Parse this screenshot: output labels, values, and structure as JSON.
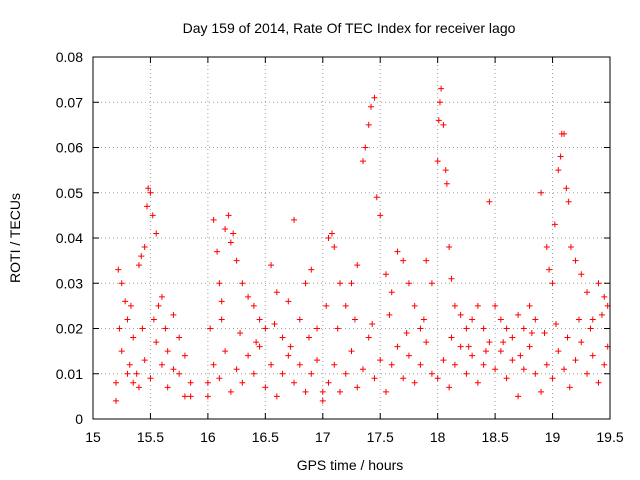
{
  "chart_data": {
    "type": "scatter",
    "title": "Day 159 of 2014, Rate Of TEC Index for receiver lago",
    "xlabel": "GPS time / hours",
    "ylabel": "ROTI / TECUs",
    "xlim": [
      15,
      19.5
    ],
    "ylim": [
      0,
      0.08
    ],
    "xticks": [
      15,
      15.5,
      16,
      16.5,
      17,
      17.5,
      18,
      18.5,
      19,
      19.5
    ],
    "xtick_labels": [
      "15",
      "15.5",
      "16",
      "16.5",
      "17",
      "17.5",
      "18",
      "18.5",
      "19",
      "19.5"
    ],
    "yticks": [
      0,
      0.01,
      0.02,
      0.03,
      0.04,
      0.05,
      0.06,
      0.07,
      0.08
    ],
    "ytick_labels": [
      "0",
      "0.01",
      "0.02",
      "0.03",
      "0.04",
      "0.05",
      "0.06",
      "0.07",
      "0.08"
    ],
    "grid": true,
    "marker": "+",
    "series": [
      {
        "name": "ROTI",
        "color": "#ff0000",
        "points": [
          [
            15.2,
            0.004
          ],
          [
            15.22,
            0.033
          ],
          [
            15.25,
            0.03
          ],
          [
            15.28,
            0.026
          ],
          [
            15.3,
            0.022
          ],
          [
            15.32,
            0.012
          ],
          [
            15.35,
            0.008
          ],
          [
            15.38,
            0.01
          ],
          [
            15.4,
            0.034
          ],
          [
            15.42,
            0.036
          ],
          [
            15.45,
            0.038
          ],
          [
            15.47,
            0.047
          ],
          [
            15.48,
            0.051
          ],
          [
            15.5,
            0.05
          ],
          [
            15.52,
            0.045
          ],
          [
            15.55,
            0.041
          ],
          [
            15.57,
            0.025
          ],
          [
            15.6,
            0.027
          ],
          [
            15.63,
            0.02
          ],
          [
            15.65,
            0.015
          ],
          [
            15.7,
            0.023
          ],
          [
            15.75,
            0.01
          ],
          [
            15.8,
            0.005
          ],
          [
            15.85,
            0.008
          ],
          [
            15.2,
            0.008
          ],
          [
            15.25,
            0.015
          ],
          [
            15.3,
            0.01
          ],
          [
            15.35,
            0.018
          ],
          [
            15.4,
            0.007
          ],
          [
            15.45,
            0.013
          ],
          [
            15.5,
            0.009
          ],
          [
            15.55,
            0.017
          ],
          [
            15.6,
            0.012
          ],
          [
            15.65,
            0.007
          ],
          [
            15.7,
            0.011
          ],
          [
            15.75,
            0.018
          ],
          [
            15.8,
            0.014
          ],
          [
            15.85,
            0.005
          ],
          [
            15.23,
            0.02
          ],
          [
            15.33,
            0.025
          ],
          [
            15.43,
            0.02
          ],
          [
            15.53,
            0.022
          ],
          [
            16.0,
            0.008
          ],
          [
            16.02,
            0.02
          ],
          [
            16.05,
            0.044
          ],
          [
            16.08,
            0.037
          ],
          [
            16.1,
            0.03
          ],
          [
            16.12,
            0.026
          ],
          [
            16.15,
            0.042
          ],
          [
            16.18,
            0.045
          ],
          [
            16.2,
            0.039
          ],
          [
            16.22,
            0.041
          ],
          [
            16.25,
            0.035
          ],
          [
            16.3,
            0.03
          ],
          [
            16.35,
            0.027
          ],
          [
            16.4,
            0.025
          ],
          [
            16.45,
            0.022
          ],
          [
            16.5,
            0.02
          ],
          [
            16.55,
            0.034
          ],
          [
            16.6,
            0.028
          ],
          [
            16.65,
            0.018
          ],
          [
            16.7,
            0.026
          ],
          [
            16.75,
            0.044
          ],
          [
            16.8,
            0.022
          ],
          [
            16.85,
            0.03
          ],
          [
            16.9,
            0.033
          ],
          [
            16.95,
            0.02
          ],
          [
            16.0,
            0.005
          ],
          [
            16.05,
            0.012
          ],
          [
            16.1,
            0.009
          ],
          [
            16.15,
            0.015
          ],
          [
            16.2,
            0.006
          ],
          [
            16.25,
            0.011
          ],
          [
            16.3,
            0.008
          ],
          [
            16.35,
            0.014
          ],
          [
            16.4,
            0.01
          ],
          [
            16.45,
            0.016
          ],
          [
            16.5,
            0.007
          ],
          [
            16.55,
            0.012
          ],
          [
            16.6,
            0.005
          ],
          [
            16.65,
            0.01
          ],
          [
            16.7,
            0.014
          ],
          [
            16.75,
            0.008
          ],
          [
            16.8,
            0.012
          ],
          [
            16.85,
            0.006
          ],
          [
            16.9,
            0.01
          ],
          [
            16.95,
            0.013
          ],
          [
            16.12,
            0.022
          ],
          [
            16.28,
            0.019
          ],
          [
            16.42,
            0.017
          ],
          [
            16.58,
            0.021
          ],
          [
            16.72,
            0.016
          ],
          [
            16.88,
            0.018
          ],
          [
            17.0,
            0.006
          ],
          [
            17.03,
            0.025
          ],
          [
            17.05,
            0.04
          ],
          [
            17.08,
            0.041
          ],
          [
            17.1,
            0.038
          ],
          [
            17.15,
            0.03
          ],
          [
            17.2,
            0.025
          ],
          [
            17.25,
            0.03
          ],
          [
            17.3,
            0.034
          ],
          [
            17.35,
            0.057
          ],
          [
            17.37,
            0.06
          ],
          [
            17.4,
            0.065
          ],
          [
            17.42,
            0.069
          ],
          [
            17.45,
            0.071
          ],
          [
            17.47,
            0.049
          ],
          [
            17.5,
            0.045
          ],
          [
            17.55,
            0.032
          ],
          [
            17.6,
            0.028
          ],
          [
            17.65,
            0.037
          ],
          [
            17.7,
            0.035
          ],
          [
            17.75,
            0.03
          ],
          [
            17.8,
            0.025
          ],
          [
            17.85,
            0.02
          ],
          [
            17.9,
            0.035
          ],
          [
            17.95,
            0.03
          ],
          [
            17.0,
            0.004
          ],
          [
            17.05,
            0.008
          ],
          [
            17.1,
            0.012
          ],
          [
            17.15,
            0.006
          ],
          [
            17.2,
            0.01
          ],
          [
            17.25,
            0.015
          ],
          [
            17.3,
            0.007
          ],
          [
            17.35,
            0.011
          ],
          [
            17.4,
            0.018
          ],
          [
            17.45,
            0.009
          ],
          [
            17.5,
            0.013
          ],
          [
            17.55,
            0.006
          ],
          [
            17.6,
            0.012
          ],
          [
            17.65,
            0.016
          ],
          [
            17.7,
            0.009
          ],
          [
            17.75,
            0.014
          ],
          [
            17.8,
            0.008
          ],
          [
            17.85,
            0.012
          ],
          [
            17.9,
            0.017
          ],
          [
            17.95,
            0.01
          ],
          [
            17.13,
            0.02
          ],
          [
            17.28,
            0.022
          ],
          [
            17.43,
            0.021
          ],
          [
            17.58,
            0.023
          ],
          [
            17.73,
            0.019
          ],
          [
            17.88,
            0.022
          ],
          [
            18.0,
            0.057
          ],
          [
            18.01,
            0.066
          ],
          [
            18.02,
            0.07
          ],
          [
            18.03,
            0.073
          ],
          [
            18.05,
            0.065
          ],
          [
            18.07,
            0.055
          ],
          [
            18.08,
            0.052
          ],
          [
            18.1,
            0.038
          ],
          [
            18.12,
            0.031
          ],
          [
            18.15,
            0.025
          ],
          [
            18.2,
            0.023
          ],
          [
            18.25,
            0.02
          ],
          [
            18.3,
            0.022
          ],
          [
            18.35,
            0.025
          ],
          [
            18.4,
            0.02
          ],
          [
            18.45,
            0.048
          ],
          [
            18.5,
            0.025
          ],
          [
            18.55,
            0.022
          ],
          [
            18.6,
            0.02
          ],
          [
            18.65,
            0.018
          ],
          [
            18.7,
            0.023
          ],
          [
            18.75,
            0.02
          ],
          [
            18.8,
            0.025
          ],
          [
            18.85,
            0.022
          ],
          [
            18.0,
            0.009
          ],
          [
            18.05,
            0.013
          ],
          [
            18.1,
            0.007
          ],
          [
            18.15,
            0.012
          ],
          [
            18.2,
            0.016
          ],
          [
            18.25,
            0.01
          ],
          [
            18.3,
            0.014
          ],
          [
            18.35,
            0.008
          ],
          [
            18.4,
            0.012
          ],
          [
            18.45,
            0.017
          ],
          [
            18.5,
            0.011
          ],
          [
            18.55,
            0.015
          ],
          [
            18.6,
            0.009
          ],
          [
            18.65,
            0.013
          ],
          [
            18.7,
            0.005
          ],
          [
            18.75,
            0.011
          ],
          [
            18.8,
            0.016
          ],
          [
            18.85,
            0.01
          ],
          [
            18.12,
            0.018
          ],
          [
            18.27,
            0.016
          ],
          [
            18.42,
            0.015
          ],
          [
            18.57,
            0.017
          ],
          [
            18.72,
            0.014
          ],
          [
            18.82,
            0.019
          ],
          [
            18.9,
            0.05
          ],
          [
            18.95,
            0.038
          ],
          [
            18.97,
            0.033
          ],
          [
            19.0,
            0.03
          ],
          [
            19.02,
            0.043
          ],
          [
            19.05,
            0.055
          ],
          [
            19.07,
            0.058
          ],
          [
            19.08,
            0.063
          ],
          [
            19.1,
            0.063
          ],
          [
            19.12,
            0.051
          ],
          [
            19.14,
            0.048
          ],
          [
            19.16,
            0.038
          ],
          [
            19.2,
            0.035
          ],
          [
            19.25,
            0.032
          ],
          [
            19.3,
            0.028
          ],
          [
            19.35,
            0.022
          ],
          [
            19.4,
            0.03
          ],
          [
            19.45,
            0.027
          ],
          [
            19.48,
            0.025
          ],
          [
            18.9,
            0.006
          ],
          [
            18.95,
            0.012
          ],
          [
            19.0,
            0.009
          ],
          [
            19.05,
            0.015
          ],
          [
            19.1,
            0.011
          ],
          [
            19.15,
            0.007
          ],
          [
            19.2,
            0.013
          ],
          [
            19.25,
            0.017
          ],
          [
            19.3,
            0.01
          ],
          [
            19.35,
            0.014
          ],
          [
            19.4,
            0.008
          ],
          [
            19.45,
            0.012
          ],
          [
            19.48,
            0.016
          ],
          [
            18.93,
            0.019
          ],
          [
            19.03,
            0.021
          ],
          [
            19.13,
            0.018
          ],
          [
            19.23,
            0.022
          ],
          [
            19.33,
            0.02
          ],
          [
            19.43,
            0.023
          ]
        ]
      }
    ]
  }
}
